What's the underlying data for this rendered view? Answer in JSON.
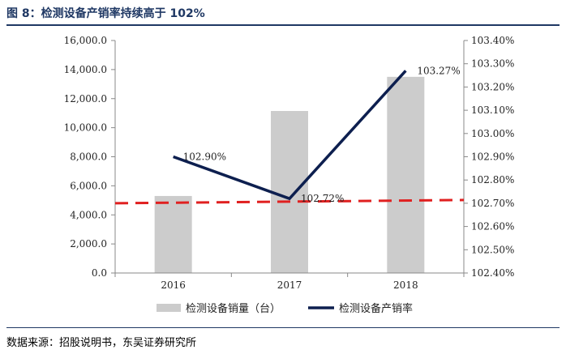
{
  "header": {
    "title": "图 8：检测设备产销率持续高于 102%"
  },
  "footer": {
    "source": "数据来源：招股说明书，东吴证券研究所"
  },
  "chart_data": {
    "type": "bar",
    "categories": [
      "2016",
      "2017",
      "2018"
    ],
    "series": [
      {
        "name": "检测设备销量（台）",
        "type": "bar",
        "axis": "left",
        "color": "#cccccc",
        "values": [
          5300,
          11150,
          13500
        ]
      },
      {
        "name": "检测设备产销率",
        "type": "line",
        "axis": "right",
        "color": "#0d1f4f",
        "values": [
          102.9,
          102.72,
          103.27
        ],
        "labels": [
          "102.90%",
          "102.72%",
          "103.27%"
        ]
      }
    ],
    "reference_line": {
      "axis": "right",
      "value": 102.7,
      "color": "#e02020",
      "style": "dashed"
    },
    "left_axis": {
      "min": 0,
      "max": 16000,
      "step": 2000,
      "tick_labels": [
        "0.0",
        "2,000.0",
        "4,000.0",
        "6,000.0",
        "8,000.0",
        "10,000.0",
        "12,000.0",
        "14,000.0",
        "16,000.0"
      ]
    },
    "right_axis": {
      "min": 102.4,
      "max": 103.4,
      "step": 0.1,
      "tick_labels": [
        "102.40%",
        "102.50%",
        "102.60%",
        "102.70%",
        "102.80%",
        "102.90%",
        "103.00%",
        "103.10%",
        "103.20%",
        "103.30%",
        "103.40%"
      ]
    },
    "grid": false,
    "legend_position": "bottom"
  }
}
